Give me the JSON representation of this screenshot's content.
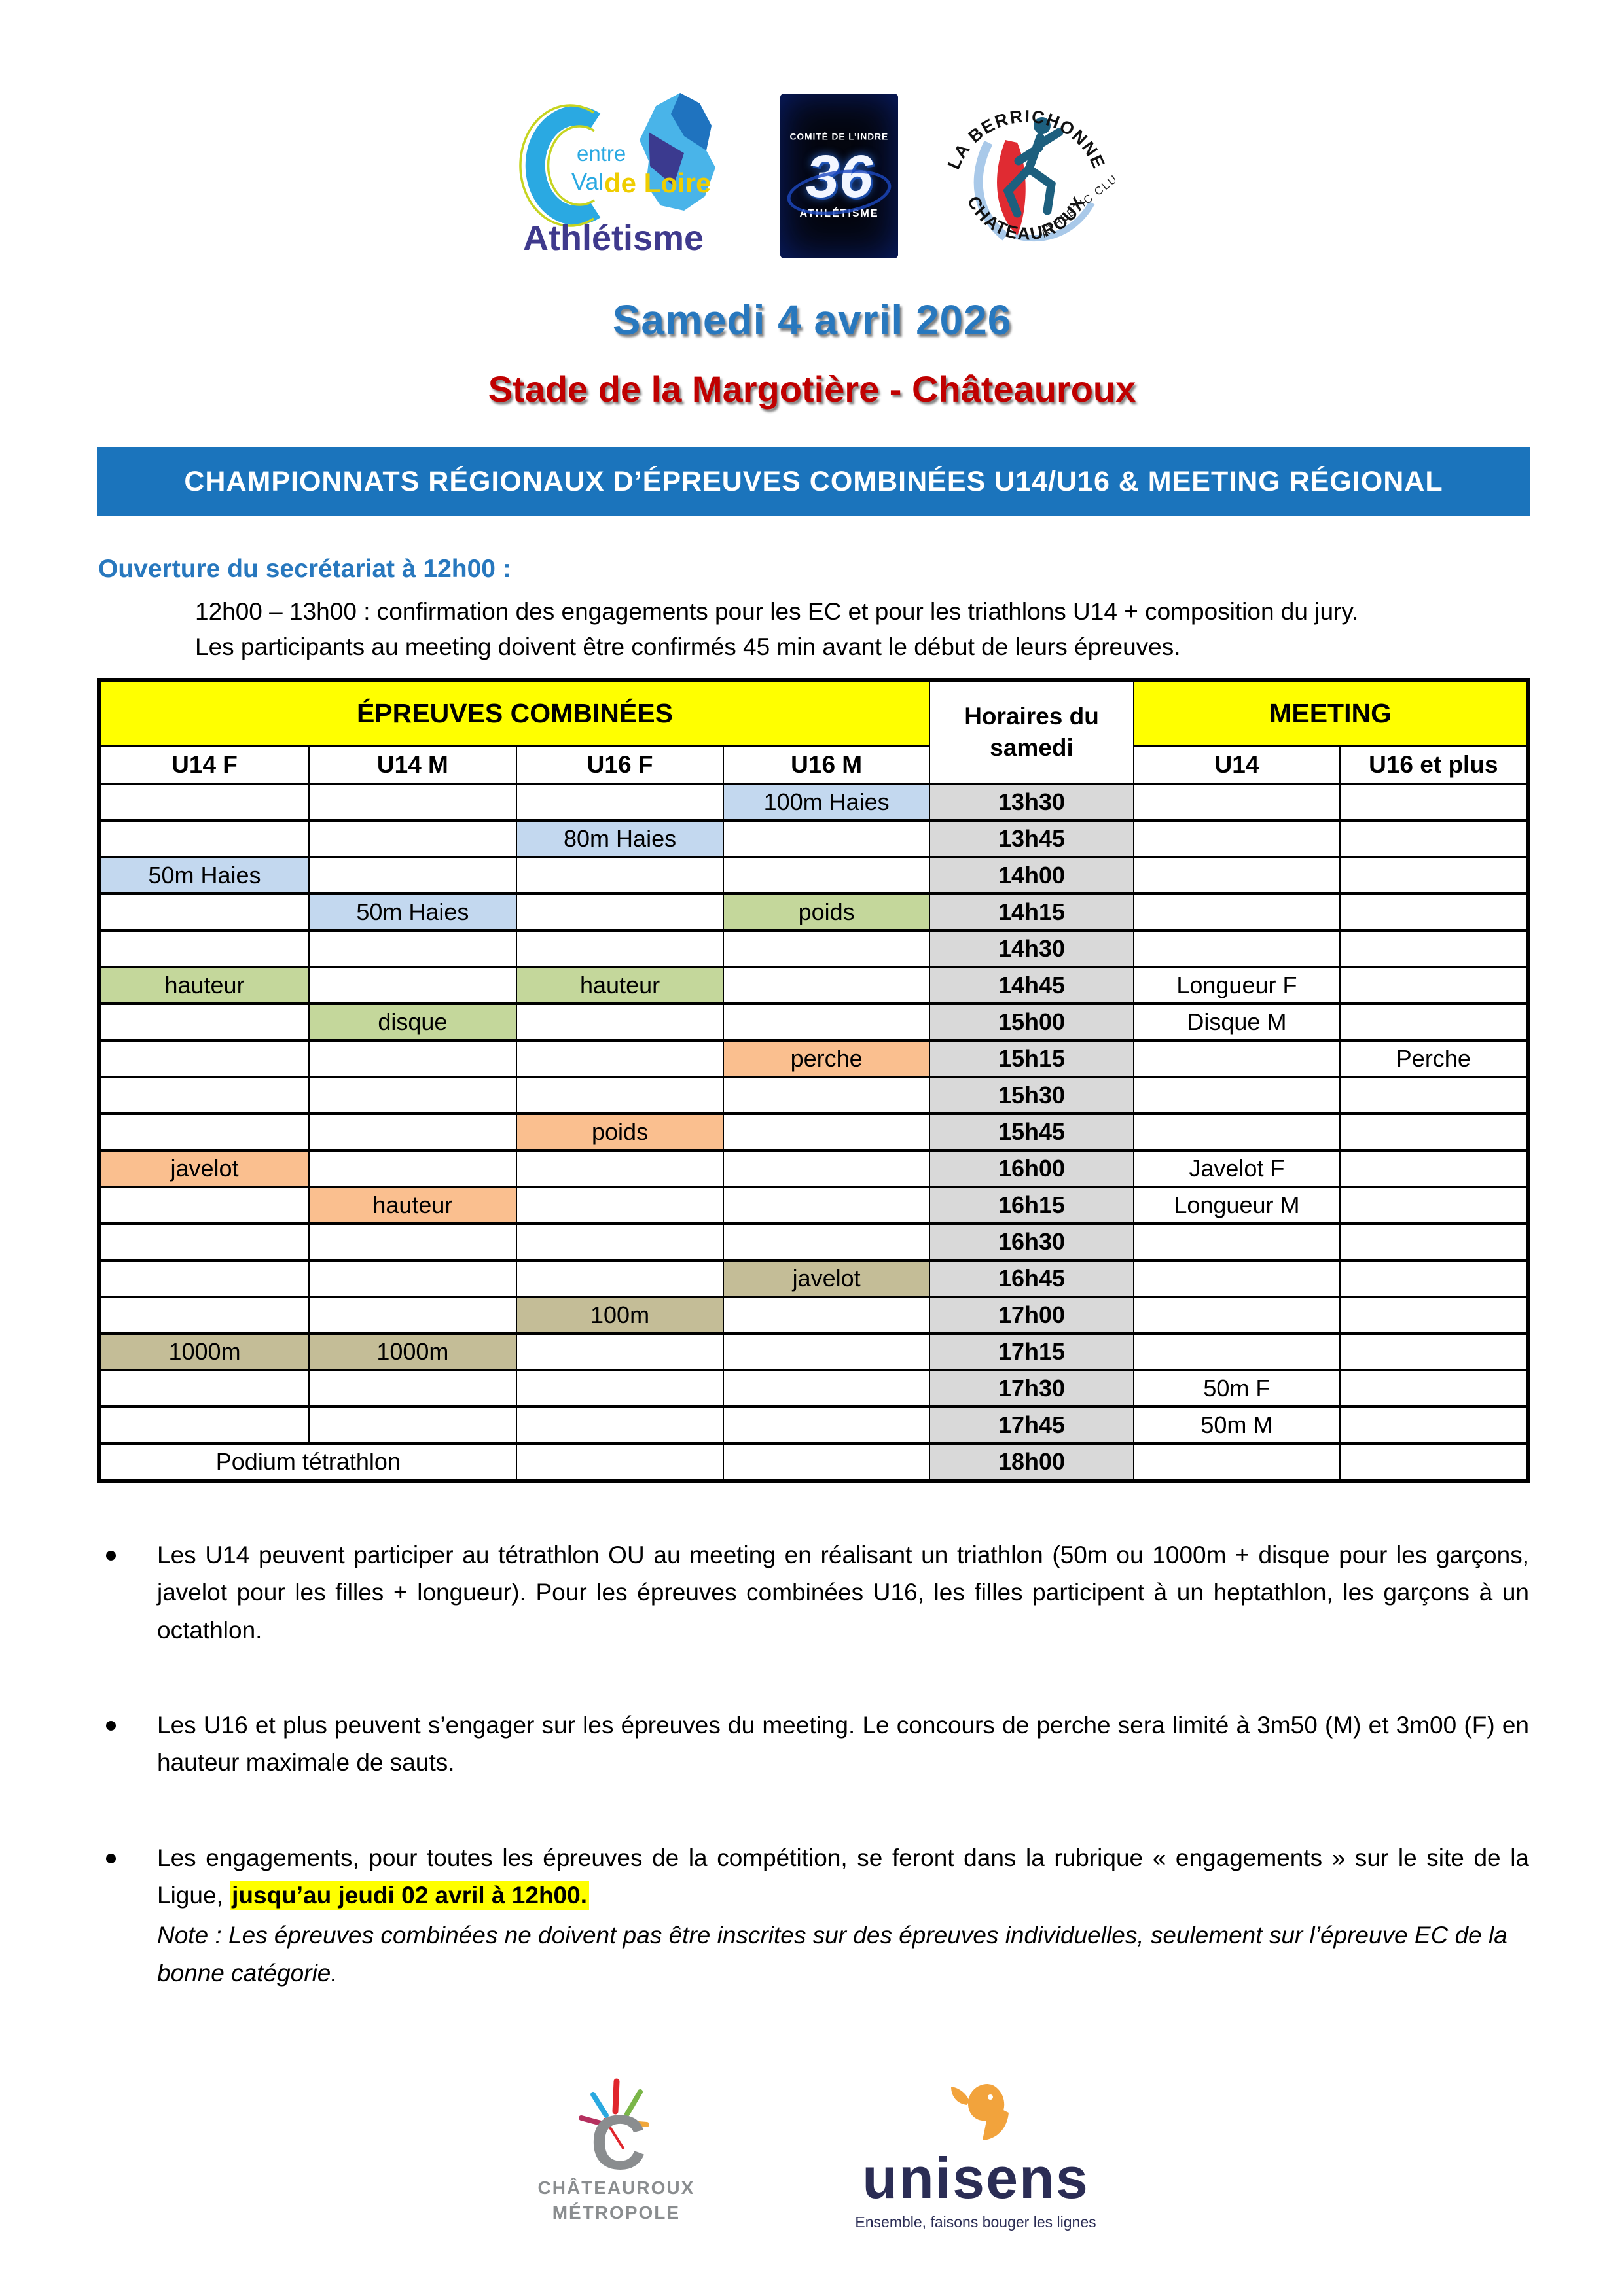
{
  "logos_top": {
    "cvdl": {
      "entre": "entre",
      "val": "Val",
      "de_loire": "de Loire",
      "athletisme": "Athlétisme"
    },
    "comite36": {
      "arc": "COMITÉ DE L’INDRE",
      "number": "36",
      "sub": "ATHLÉTISME"
    },
    "berrichonne": {
      "top": "LA BERRICHONNE",
      "bottom": "CHATEAUROUX",
      "club": "ATHLÉTIC  CLUB"
    }
  },
  "title": "Samedi 4 avril 2026",
  "subtitle": "Stade de la Margotière - Châteauroux",
  "banner": "CHAMPIONNATS RÉGIONAUX D’ÉPREUVES COMBINÉES U14/U16 & MEETING RÉGIONAL",
  "secretariat": {
    "heading": "Ouverture du secrétariat à 12h00 :",
    "line1": "12h00 – 13h00 : confirmation des engagements pour les EC et pour les triathlons U14 + composition du jury.",
    "line2": "Les participants au meeting doivent être confirmés 45 min avant le début de leurs épreuves."
  },
  "table": {
    "header_ec": "ÉPREUVES COMBINÉES",
    "header_time": "Horaires du samedi",
    "header_meeting": "MEETING",
    "columns": [
      "U14 F",
      "U14 M",
      "U16 F",
      "U16 M",
      "U14",
      "U16 et plus"
    ],
    "rows": [
      {
        "time": "13h30",
        "ec": [
          null,
          null,
          null,
          [
            "100m Haies",
            "blue"
          ]
        ],
        "meet": [
          null,
          null
        ]
      },
      {
        "time": "13h45",
        "ec": [
          null,
          null,
          [
            "80m Haies",
            "blue"
          ],
          null
        ],
        "meet": [
          null,
          null
        ]
      },
      {
        "time": "14h00",
        "ec": [
          [
            "50m Haies",
            "blue"
          ],
          null,
          null,
          null
        ],
        "meet": [
          null,
          null
        ]
      },
      {
        "time": "14h15",
        "ec": [
          null,
          [
            "50m Haies",
            "blue"
          ],
          null,
          [
            "poids",
            "green"
          ]
        ],
        "meet": [
          null,
          null
        ]
      },
      {
        "time": "14h30",
        "ec": [
          null,
          null,
          null,
          null
        ],
        "meet": [
          null,
          null
        ]
      },
      {
        "time": "14h45",
        "ec": [
          [
            "hauteur",
            "green"
          ],
          null,
          [
            "hauteur",
            "green"
          ],
          null
        ],
        "meet": [
          "Longueur F",
          null
        ]
      },
      {
        "time": "15h00",
        "ec": [
          null,
          [
            "disque",
            "green"
          ],
          null,
          null
        ],
        "meet": [
          "Disque M",
          null
        ]
      },
      {
        "time": "15h15",
        "ec": [
          null,
          null,
          null,
          [
            "perche",
            "orange"
          ]
        ],
        "meet": [
          null,
          "Perche"
        ]
      },
      {
        "time": "15h30",
        "ec": [
          null,
          null,
          null,
          null
        ],
        "meet": [
          null,
          null
        ]
      },
      {
        "time": "15h45",
        "ec": [
          null,
          null,
          [
            "poids",
            "orange"
          ],
          null
        ],
        "meet": [
          null,
          null
        ]
      },
      {
        "time": "16h00",
        "ec": [
          [
            "javelot",
            "orange"
          ],
          null,
          null,
          null
        ],
        "meet": [
          "Javelot F",
          null
        ]
      },
      {
        "time": "16h15",
        "ec": [
          null,
          [
            "hauteur",
            "orange"
          ],
          null,
          null
        ],
        "meet": [
          "Longueur M",
          null
        ]
      },
      {
        "time": "16h30",
        "ec": [
          null,
          null,
          null,
          null
        ],
        "meet": [
          null,
          null
        ]
      },
      {
        "time": "16h45",
        "ec": [
          null,
          null,
          null,
          [
            "javelot",
            "tan"
          ]
        ],
        "meet": [
          null,
          null
        ]
      },
      {
        "time": "17h00",
        "ec": [
          null,
          null,
          [
            "100m",
            "tan"
          ],
          null
        ],
        "meet": [
          null,
          null
        ]
      },
      {
        "time": "17h15",
        "ec": [
          [
            "1000m",
            "tan"
          ],
          [
            "1000m",
            "tan"
          ],
          null,
          null
        ],
        "meet": [
          null,
          null
        ]
      },
      {
        "time": "17h30",
        "ec": [
          null,
          null,
          null,
          null
        ],
        "meet": [
          "50m F",
          null
        ]
      },
      {
        "time": "17h45",
        "ec": [
          null,
          null,
          null,
          null
        ],
        "meet": [
          "50m M",
          null
        ]
      },
      {
        "time": "18h00",
        "podium": "Podium tétrathlon",
        "ec": [
          null,
          null,
          null,
          null
        ],
        "meet": [
          null,
          null
        ]
      }
    ]
  },
  "bullets": [
    {
      "text": "Les U14 peuvent participer au tétrathlon OU au meeting en réalisant un triathlon (50m ou 1000m + disque pour les garçons, javelot pour les filles + longueur). Pour les épreuves combinées U16, les filles participent à un heptathlon, les garçons à un octathlon."
    },
    {
      "text": "Les U16 et plus peuvent s’engager sur les épreuves du meeting. Le concours de perche sera limité à 3m50 (M) et 3m00 (F) en hauteur maximale de sauts."
    },
    {
      "text_before": "Les engagements, pour toutes les épreuves de la compétition, se feront dans la rubrique « engagements » sur le site de la Ligue, ",
      "highlight": "jusqu’au jeudi 02 avril à 12h00.",
      "note": "Note : Les épreuves combinées ne doivent pas être inscrites sur des épreuves individuelles, seulement sur l’épreuve EC de la bonne catégorie."
    }
  ],
  "logos_bottom": {
    "chateauroux": {
      "line1": "CHÂTEAUROUX",
      "line2": "MÉTROPOLE"
    },
    "unisens": {
      "name": "unisens",
      "tagline": "Ensemble, faisons bouger les lignes"
    }
  },
  "colors": {
    "banner_blue": "#1b74bc",
    "title_blue": "#2878be",
    "subtitle_red": "#c00000",
    "header_yellow": "#ffff00",
    "time_gray": "#d9d9d9",
    "blue": "#c3d8ef",
    "green": "#c4d79b",
    "orange": "#fabf8f",
    "tan": "#c4bd97",
    "highlight_yellow": "#ffff00"
  }
}
